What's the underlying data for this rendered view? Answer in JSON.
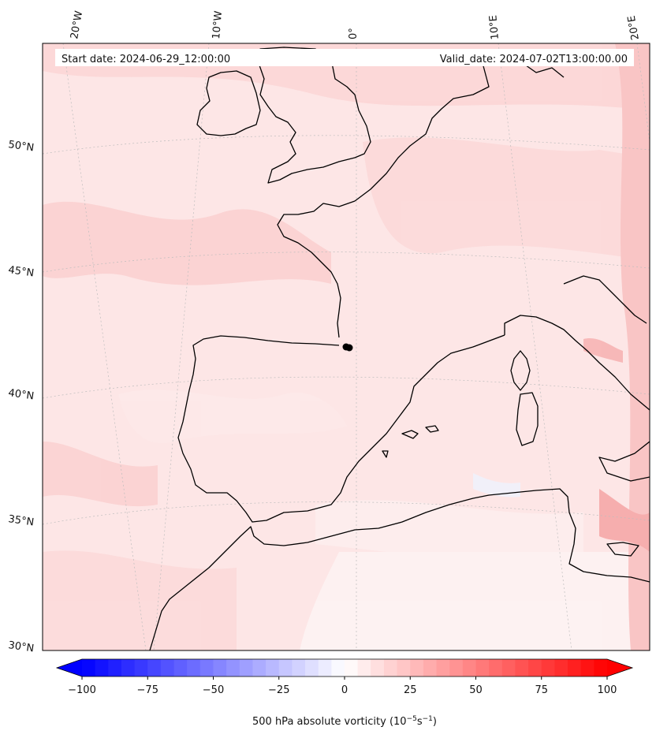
{
  "header": {
    "start_date": "Start date: 2024-06-29_12:00:00",
    "valid_date": "Valid_date: 2024-07-02T13:00:00.00"
  },
  "map": {
    "field": "500 hPa absolute vorticity",
    "lon_labels": [
      "20°W",
      "10°W",
      "0°",
      "10°E",
      "20°E"
    ],
    "lat_labels": [
      "50°N",
      "45°N",
      "40°N",
      "35°N",
      "30°N"
    ],
    "grid": true,
    "coastlines": true,
    "marker": "black dot cluster near the Pyrenees"
  },
  "colorbar": {
    "vmin": -100,
    "vmax": 100,
    "extend": "both",
    "ticks": [
      "−100",
      "−75",
      "−50",
      "−25",
      "0",
      "25",
      "50",
      "75",
      "100"
    ],
    "label_main": "500 hPa absolute vorticity (10",
    "label_exp1": "−5",
    "label_mid": "s",
    "label_exp2": "−1",
    "label_end": ")",
    "colors": {
      "negative": "#0000ff",
      "zero": "#ffffff",
      "positive": "#ff0000"
    }
  },
  "colors": {
    "background_field": "#fde4e4",
    "coastline": "#000000",
    "gridline": "#bbbbbb"
  }
}
